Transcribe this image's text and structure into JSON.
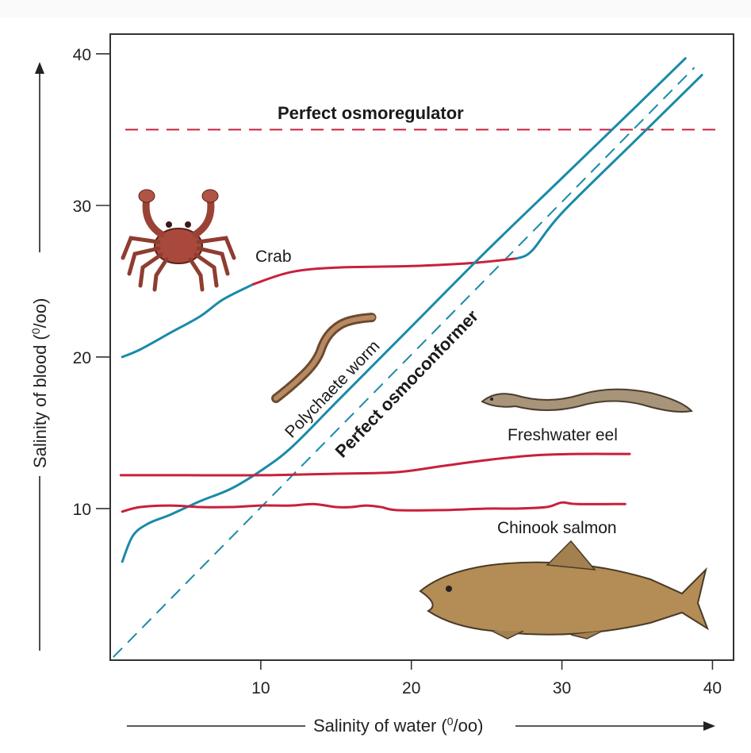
{
  "chart_data": {
    "type": "line",
    "title": "",
    "xlabel": "Salinity of water (0/00)",
    "ylabel": "Salinity of blood (0/00)",
    "xlim": [
      0,
      41.4
    ],
    "ylim": [
      0,
      41.3
    ],
    "x_ticks": [
      10,
      20,
      30,
      40
    ],
    "y_ticks": [
      10,
      20,
      30,
      40
    ],
    "grid": false,
    "colors": {
      "regulating": "#c8203c",
      "conforming": "#1a8aa8",
      "axis": "#222222"
    },
    "reference_lines": [
      {
        "name": "Perfect osmoregulator",
        "style": "dashed",
        "color": "#c8203c",
        "points": [
          [
            1,
            35
          ],
          [
            40.5,
            35
          ]
        ]
      },
      {
        "name": "Perfect osmoconformer",
        "style": "dashed",
        "color": "#1a8aa8",
        "points": [
          [
            0.2,
            0.2
          ],
          [
            38.8,
            39.1
          ]
        ]
      }
    ],
    "series": [
      {
        "name": "Crab",
        "segments": [
          {
            "color": "#1a8aa8",
            "points": [
              [
                0.8,
                20
              ],
              [
                2,
                20.5
              ],
              [
                4,
                21.6
              ],
              [
                6,
                22.7
              ],
              [
                7.5,
                23.8
              ],
              [
                9.5,
                24.8
              ]
            ]
          },
          {
            "color": "#c8203c",
            "points": [
              [
                9.5,
                24.8
              ],
              [
                12,
                25.6
              ],
              [
                15,
                25.9
              ],
              [
                20,
                26
              ],
              [
                24,
                26.2
              ],
              [
                27,
                26.5
              ]
            ]
          },
          {
            "color": "#1a8aa8",
            "points": [
              [
                27,
                26.5
              ],
              [
                28,
                27
              ],
              [
                30,
                29.5
              ],
              [
                35,
                34.4
              ],
              [
                39.3,
                38.6
              ]
            ]
          }
        ]
      },
      {
        "name": "Polychaete worm",
        "segments": [
          {
            "color": "#1a8aa8",
            "points": [
              [
                0.8,
                6.5
              ],
              [
                1.5,
                8.2
              ],
              [
                2.5,
                9
              ],
              [
                4,
                9.6
              ],
              [
                6,
                10.5
              ],
              [
                8,
                11.3
              ],
              [
                10,
                12.5
              ],
              [
                12,
                14
              ],
              [
                15,
                17
              ],
              [
                20,
                22
              ],
              [
                25,
                27
              ],
              [
                30,
                31.8
              ],
              [
                35,
                36.6
              ],
              [
                38.2,
                39.7
              ]
            ]
          }
        ]
      },
      {
        "name": "Freshwater eel",
        "segments": [
          {
            "color": "#c8203c",
            "points": [
              [
                0.7,
                12.2
              ],
              [
                5,
                12.2
              ],
              [
                10,
                12.2
              ],
              [
                15,
                12.3
              ],
              [
                19,
                12.4
              ],
              [
                22,
                12.8
              ],
              [
                25,
                13.2
              ],
              [
                28,
                13.5
              ],
              [
                31,
                13.6
              ],
              [
                34.5,
                13.6
              ]
            ]
          }
        ]
      },
      {
        "name": "Chinook salmon",
        "segments": [
          {
            "color": "#c8203c",
            "points": [
              [
                0.8,
                9.8
              ],
              [
                2,
                10.1
              ],
              [
                4,
                10.2
              ],
              [
                6,
                10.1
              ],
              [
                8,
                10.1
              ],
              [
                10,
                10.2
              ],
              [
                12,
                10.2
              ],
              [
                13.5,
                10.3
              ],
              [
                15,
                10.1
              ],
              [
                16,
                10.1
              ],
              [
                17,
                10.2
              ],
              [
                18,
                10.1
              ],
              [
                19,
                9.9
              ],
              [
                22,
                9.9
              ],
              [
                25,
                10
              ],
              [
                27,
                10
              ],
              [
                29,
                10.1
              ],
              [
                30,
                10.4
              ],
              [
                31,
                10.3
              ],
              [
                34.2,
                10.3
              ]
            ]
          }
        ]
      }
    ],
    "annotations": [
      {
        "text": "Perfect osmoregulator",
        "bold": true
      },
      {
        "text": "Perfect osmoconformer",
        "bold": true
      },
      {
        "text": "Crab",
        "bold": false
      },
      {
        "text": "Polychaete worm",
        "bold": false
      },
      {
        "text": "Freshwater eel",
        "bold": false
      },
      {
        "text": "Chinook salmon",
        "bold": false
      }
    ],
    "illustrations": [
      "crab",
      "polychaete-worm",
      "freshwater-eel",
      "chinook-salmon"
    ]
  }
}
